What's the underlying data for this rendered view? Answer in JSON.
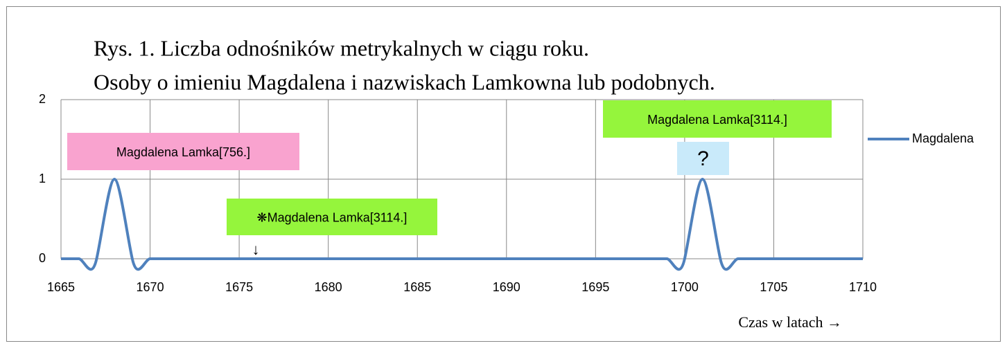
{
  "chart_data": {
    "type": "line",
    "title": [
      "Rys. 1. Liczba odnośników metrykalnych w ciągu roku.",
      "Osoby o imieniu Magdalena i nazwiskach Lamkowna lub podobnych."
    ],
    "x_label": "Czas w latach →",
    "x": [
      1665,
      1666,
      1667,
      1668,
      1669,
      1670,
      1671,
      1672,
      1673,
      1674,
      1675,
      1676,
      1677,
      1678,
      1679,
      1680,
      1681,
      1682,
      1683,
      1684,
      1685,
      1686,
      1687,
      1688,
      1689,
      1690,
      1691,
      1692,
      1693,
      1694,
      1695,
      1696,
      1697,
      1698,
      1699,
      1700,
      1701,
      1702,
      1703,
      1704,
      1705,
      1706,
      1707,
      1708,
      1709,
      1710
    ],
    "series": [
      {
        "name": "Magdalena",
        "color": "#4f81bd",
        "values": [
          0,
          0,
          0,
          1,
          0,
          0,
          0,
          0,
          0,
          0,
          0,
          0,
          0,
          0,
          0,
          0,
          0,
          0,
          0,
          0,
          0,
          0,
          0,
          0,
          0,
          0,
          0,
          0,
          0,
          0,
          0,
          0,
          0,
          0,
          0,
          0,
          1,
          0,
          0,
          0,
          0,
          0,
          0,
          0,
          0,
          0
        ]
      }
    ],
    "xlim": [
      1665,
      1710
    ],
    "xticks": [
      1665,
      1670,
      1675,
      1680,
      1685,
      1690,
      1695,
      1700,
      1705,
      1710
    ],
    "ylim": [
      0,
      2
    ],
    "yticks": [
      0,
      1,
      2
    ],
    "grid": true,
    "legend": "right",
    "annotations": [
      {
        "text": "Magdalena Lamka[756.]",
        "color": "#f9a3cf"
      },
      {
        "text": "❋Magdalena Lamka[3114.]",
        "color": "#95f53c"
      },
      {
        "text": "↓"
      },
      {
        "text": "Magdalena Lamka[3114.]",
        "color": "#95f53c"
      },
      {
        "text": "?",
        "color": "#c9eafa"
      }
    ]
  }
}
